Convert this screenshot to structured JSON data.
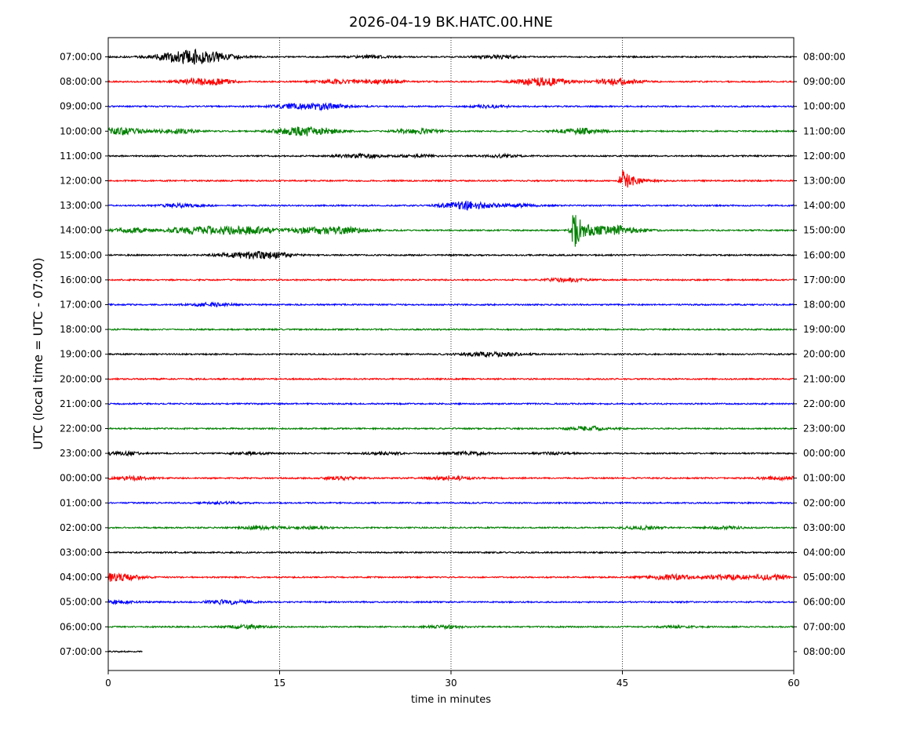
{
  "chart_data": {
    "type": "line",
    "title": "2026-04-19 BK.HATC.00.HNE",
    "xlabel": "time in minutes",
    "ylabel": "UTC (local time = UTC - 07:00)",
    "xlim": [
      0,
      60
    ],
    "x_ticks": [
      "0",
      "15",
      "30",
      "45",
      "60"
    ],
    "grid": "vertical dotted at 15, 30, 45",
    "trace_colors": [
      "#000000",
      "#ff0000",
      "#0000ff",
      "#008000"
    ],
    "rows": [
      {
        "left": "07:00:00",
        "right": "08:00:00",
        "color": "#000000",
        "bursts": [
          [
            7.5,
            9
          ],
          [
            23,
            1.5
          ],
          [
            34,
            2
          ]
        ],
        "end": 60
      },
      {
        "left": "08:00:00",
        "right": "09:00:00",
        "color": "#ff0000",
        "bursts": [
          [
            8.5,
            4.5
          ],
          [
            20,
            2.5
          ],
          [
            24,
            2.5
          ],
          [
            38,
            5
          ],
          [
            44.5,
            3.5
          ]
        ],
        "end": 60
      },
      {
        "left": "09:00:00",
        "right": "10:00:00",
        "color": "#0000ff",
        "bursts": [
          [
            16,
            2.5
          ],
          [
            19,
            3.5
          ],
          [
            33.5,
            1.5
          ]
        ],
        "end": 60
      },
      {
        "left": "10:00:00",
        "right": "11:00:00",
        "color": "#008000",
        "bursts": [
          [
            1,
            4
          ],
          [
            6,
            2.5
          ],
          [
            16,
            2.5
          ],
          [
            18,
            4.5
          ],
          [
            27,
            3
          ],
          [
            41.5,
            3.5
          ]
        ],
        "end": 60
      },
      {
        "left": "11:00:00",
        "right": "12:00:00",
        "color": "#000000",
        "bursts": [
          [
            22,
            2.5
          ],
          [
            27,
            1.5
          ],
          [
            34.5,
            1.5
          ]
        ],
        "end": 60
      },
      {
        "left": "12:00:00",
        "right": "13:00:00",
        "color": "#ff0000",
        "bursts": [
          [
            45,
            14
          ]
        ],
        "end": 60
      },
      {
        "left": "13:00:00",
        "right": "14:00:00",
        "color": "#0000ff",
        "bursts": [
          [
            6.5,
            2
          ],
          [
            31.5,
            5
          ],
          [
            36,
            1.5
          ]
        ],
        "end": 60
      },
      {
        "left": "14:00:00",
        "right": "15:00:00",
        "color": "#008000",
        "bursts": [
          [
            2,
            2.5
          ],
          [
            7,
            3.5
          ],
          [
            10,
            4
          ],
          [
            13,
            3.5
          ],
          [
            18,
            4
          ],
          [
            21,
            3
          ],
          [
            40.7,
            24
          ],
          [
            44.5,
            5
          ]
        ],
        "end": 60
      },
      {
        "left": "15:00:00",
        "right": "16:00:00",
        "color": "#000000",
        "bursts": [
          [
            14,
            4
          ],
          [
            11,
            2.5
          ]
        ],
        "end": 60
      },
      {
        "left": "16:00:00",
        "right": "17:00:00",
        "color": "#ff0000",
        "bursts": [
          [
            40,
            2
          ]
        ],
        "end": 60
      },
      {
        "left": "17:00:00",
        "right": "18:00:00",
        "color": "#0000ff",
        "bursts": [
          [
            9,
            2
          ]
        ],
        "end": 60
      },
      {
        "left": "18:00:00",
        "right": "19:00:00",
        "color": "#008000",
        "bursts": [],
        "end": 60
      },
      {
        "left": "19:00:00",
        "right": "20:00:00",
        "color": "#000000",
        "bursts": [
          [
            32.5,
            2
          ],
          [
            35,
            1.5
          ]
        ],
        "end": 60
      },
      {
        "left": "20:00:00",
        "right": "21:00:00",
        "color": "#ff0000",
        "bursts": [],
        "end": 60
      },
      {
        "left": "21:00:00",
        "right": "22:00:00",
        "color": "#0000ff",
        "bursts": [],
        "end": 60
      },
      {
        "left": "22:00:00",
        "right": "23:00:00",
        "color": "#008000",
        "bursts": [
          [
            42,
            2.5
          ]
        ],
        "end": 60
      },
      {
        "left": "23:00:00",
        "right": "00:00:00",
        "color": "#000000",
        "bursts": [
          [
            1,
            2
          ],
          [
            12.5,
            1.5
          ],
          [
            24,
            1.5
          ],
          [
            31.5,
            2
          ],
          [
            39,
            1
          ]
        ],
        "end": 60
      },
      {
        "left": "00:00:00",
        "right": "01:00:00",
        "color": "#ff0000",
        "bursts": [
          [
            2,
            2
          ],
          [
            30,
            2.5
          ],
          [
            20.5,
            1.5
          ],
          [
            59,
            2
          ]
        ],
        "end": 60
      },
      {
        "left": "01:00:00",
        "right": "02:00:00",
        "color": "#0000ff",
        "bursts": [
          [
            10,
            1
          ]
        ],
        "end": 60
      },
      {
        "left": "02:00:00",
        "right": "03:00:00",
        "color": "#008000",
        "bursts": [
          [
            13.5,
            2
          ],
          [
            18,
            1.5
          ],
          [
            47,
            2
          ],
          [
            54,
            1.5
          ]
        ],
        "end": 60
      },
      {
        "left": "03:00:00",
        "right": "04:00:00",
        "color": "#000000",
        "bursts": [],
        "end": 60
      },
      {
        "left": "04:00:00",
        "right": "05:00:00",
        "color": "#ff0000",
        "bursts": [
          [
            0.3,
            5
          ],
          [
            49,
            3
          ],
          [
            54,
            3
          ],
          [
            58,
            3
          ]
        ],
        "end": 60
      },
      {
        "left": "05:00:00",
        "right": "06:00:00",
        "color": "#0000ff",
        "bursts": [
          [
            10.5,
            2.5
          ],
          [
            0.3,
            2
          ]
        ],
        "end": 60
      },
      {
        "left": "06:00:00",
        "right": "07:00:00",
        "color": "#008000",
        "bursts": [
          [
            12,
            2
          ],
          [
            29.5,
            1.5
          ],
          [
            50,
            1
          ]
        ],
        "end": 60
      },
      {
        "left": "07:00:00",
        "right": "08:00:00",
        "color": "#000000",
        "bursts": [],
        "end": 3
      }
    ]
  }
}
